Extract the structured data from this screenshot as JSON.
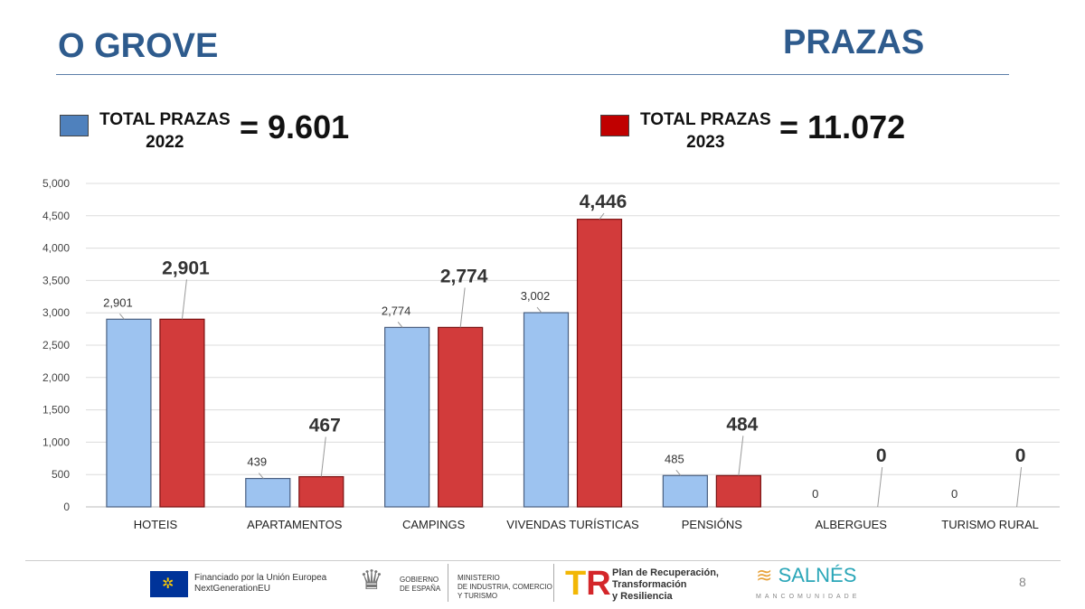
{
  "header": {
    "title": "O GROVE",
    "section": "PRAZAS"
  },
  "legend": [
    {
      "label1": "TOTAL PRAZAS",
      "label2": "2022",
      "total": "= 9.601",
      "color": "#4f81bd"
    },
    {
      "label1": "TOTAL PRAZAS",
      "label2": "2023",
      "total": "= 11.072",
      "color": "#c00000"
    }
  ],
  "chart_data": {
    "type": "bar",
    "categories": [
      "HOTEIS",
      "APARTAMENTOS",
      "CAMPINGS",
      "VIVENDAS TURÍSTICAS",
      "PENSIÓNS",
      "ALBERGUES",
      "TURISMO RURAL"
    ],
    "series": [
      {
        "name": "2022",
        "values": [
          2901,
          439,
          2774,
          3002,
          485,
          0,
          0
        ],
        "labels": [
          "2,901",
          "439",
          "2,774",
          "3,002",
          "485",
          "0",
          "0"
        ],
        "color": "#9dc3f0"
      },
      {
        "name": "2023",
        "values": [
          2901,
          467,
          2774,
          4446,
          484,
          0,
          0
        ],
        "labels": [
          "2,901",
          "467",
          "2,774",
          "4,446",
          "484",
          "0",
          "0"
        ],
        "color": "#d23b3b"
      }
    ],
    "yticks": [
      "0",
      "500",
      "1,000",
      "1,500",
      "2,000",
      "2,500",
      "3,000",
      "3,500",
      "4,000",
      "4,500",
      "5,000"
    ],
    "ylim": [
      0,
      5000
    ],
    "grid": true
  },
  "footer": {
    "eu1": "Financiado por la Unión Europea",
    "eu2": "NextGenerationEU",
    "gob1": "GOBIERNO",
    "gob2": "DE ESPAÑA",
    "min1": "MINISTERIO",
    "min2": "DE INDUSTRIA, COMERCIO",
    "min3": "Y TURISMO",
    "plan1": "Plan de Recuperación,",
    "plan2": "Transformación",
    "plan3": "y Resiliencia",
    "salnes": "SALNÉS",
    "mancomunidade": "MANCOMUNIDADE",
    "page": "8"
  }
}
